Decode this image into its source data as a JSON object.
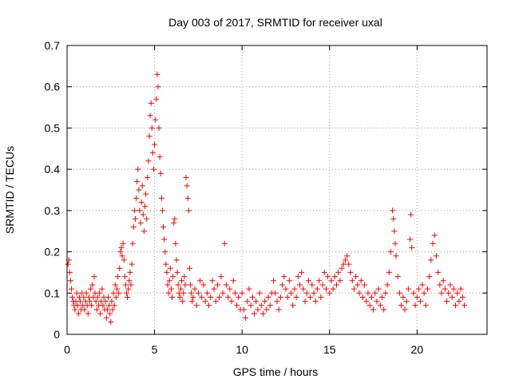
{
  "chart_data": {
    "type": "scatter",
    "title": "Day 003 of 2017, SRMTID for receiver uxal",
    "xlabel": "GPS time / hours",
    "ylabel": "SRMTID / TECUs",
    "xlim": [
      0,
      24
    ],
    "ylim": [
      0,
      0.7
    ],
    "xticks": [
      "0",
      "5",
      "10",
      "15",
      "20"
    ],
    "yticks": [
      "0",
      "0.1",
      "0.2",
      "0.3",
      "0.4",
      "0.5",
      "0.6",
      "0.7"
    ],
    "grid": true,
    "marker": "+",
    "marker_color": "#ff0000",
    "series": [
      {
        "name": "SRMTID",
        "points": [
          [
            0.05,
            0.17
          ],
          [
            0.1,
            0.18
          ],
          [
            0.15,
            0.15
          ],
          [
            0.2,
            0.13
          ],
          [
            0.25,
            0.11
          ],
          [
            0.3,
            0.09
          ],
          [
            0.35,
            0.08
          ],
          [
            0.4,
            0.07
          ],
          [
            0.45,
            0.06
          ],
          [
            0.5,
            0.08
          ],
          [
            0.55,
            0.1
          ],
          [
            0.6,
            0.07
          ],
          [
            0.65,
            0.05
          ],
          [
            0.7,
            0.09
          ],
          [
            0.75,
            0.08
          ],
          [
            0.8,
            0.06
          ],
          [
            0.85,
            0.1
          ],
          [
            0.9,
            0.07
          ],
          [
            0.95,
            0.09
          ],
          [
            1.0,
            0.06
          ],
          [
            1.05,
            0.08
          ],
          [
            1.1,
            0.1
          ],
          [
            1.15,
            0.07
          ],
          [
            1.2,
            0.05
          ],
          [
            1.25,
            0.09
          ],
          [
            1.3,
            0.08
          ],
          [
            1.35,
            0.11
          ],
          [
            1.4,
            0.07
          ],
          [
            1.45,
            0.12
          ],
          [
            1.5,
            0.09
          ],
          [
            1.55,
            0.14
          ],
          [
            1.6,
            0.1
          ],
          [
            1.65,
            0.08
          ],
          [
            1.7,
            0.06
          ],
          [
            1.75,
            0.09
          ],
          [
            1.8,
            0.07
          ],
          [
            1.85,
            0.1
          ],
          [
            1.9,
            0.05
          ],
          [
            1.95,
            0.08
          ],
          [
            2.0,
            0.11
          ],
          [
            2.05,
            0.07
          ],
          [
            2.1,
            0.09
          ],
          [
            2.15,
            0.06
          ],
          [
            2.2,
            0.08
          ],
          [
            2.25,
            0.04
          ],
          [
            2.3,
            0.06
          ],
          [
            2.35,
            0.09
          ],
          [
            2.4,
            0.07
          ],
          [
            2.45,
            0.05
          ],
          [
            2.5,
            0.03
          ],
          [
            2.55,
            0.08
          ],
          [
            2.6,
            0.06
          ],
          [
            2.65,
            0.1
          ],
          [
            2.7,
            0.07
          ],
          [
            2.75,
            0.12
          ],
          [
            2.8,
            0.09
          ],
          [
            2.85,
            0.11
          ],
          [
            2.9,
            0.14
          ],
          [
            2.95,
            0.1
          ],
          [
            3.0,
            0.16
          ],
          [
            3.05,
            0.2
          ],
          [
            3.1,
            0.21
          ],
          [
            3.15,
            0.19
          ],
          [
            3.2,
            0.22
          ],
          [
            3.25,
            0.18
          ],
          [
            3.3,
            0.14
          ],
          [
            3.35,
            0.12
          ],
          [
            3.4,
            0.1
          ],
          [
            3.45,
            0.09
          ],
          [
            3.5,
            0.11
          ],
          [
            3.55,
            0.13
          ],
          [
            3.6,
            0.15
          ],
          [
            3.65,
            0.12
          ],
          [
            3.7,
            0.17
          ],
          [
            3.75,
            0.22
          ],
          [
            3.8,
            0.26
          ],
          [
            3.85,
            0.3
          ],
          [
            3.9,
            0.28
          ],
          [
            3.95,
            0.33
          ],
          [
            4.0,
            0.37
          ],
          [
            4.05,
            0.4
          ],
          [
            4.1,
            0.35
          ],
          [
            4.15,
            0.3
          ],
          [
            4.2,
            0.27
          ],
          [
            4.25,
            0.32
          ],
          [
            4.3,
            0.36
          ],
          [
            4.35,
            0.29
          ],
          [
            4.4,
            0.25
          ],
          [
            4.45,
            0.31
          ],
          [
            4.5,
            0.34
          ],
          [
            4.55,
            0.28
          ],
          [
            4.6,
            0.38
          ],
          [
            4.65,
            0.42
          ],
          [
            4.7,
            0.48
          ],
          [
            4.75,
            0.53
          ],
          [
            4.8,
            0.56
          ],
          [
            4.85,
            0.5
          ],
          [
            4.9,
            0.44
          ],
          [
            4.95,
            0.4
          ],
          [
            5.0,
            0.46
          ],
          [
            5.05,
            0.52
          ],
          [
            5.1,
            0.57
          ],
          [
            5.15,
            0.63
          ],
          [
            5.2,
            0.6
          ],
          [
            5.25,
            0.5
          ],
          [
            5.3,
            0.43
          ],
          [
            5.35,
            0.39
          ],
          [
            5.4,
            0.33
          ],
          [
            5.45,
            0.3
          ],
          [
            5.5,
            0.26
          ],
          [
            5.55,
            0.23
          ],
          [
            5.6,
            0.2
          ],
          [
            5.65,
            0.17
          ],
          [
            5.7,
            0.15
          ],
          [
            5.75,
            0.12
          ],
          [
            5.8,
            0.1
          ],
          [
            5.85,
            0.13
          ],
          [
            5.9,
            0.16
          ],
          [
            5.95,
            0.11
          ],
          [
            6.0,
            0.09
          ],
          [
            6.05,
            0.14
          ],
          [
            6.1,
            0.27
          ],
          [
            6.15,
            0.28
          ],
          [
            6.2,
            0.22
          ],
          [
            6.25,
            0.18
          ],
          [
            6.3,
            0.15
          ],
          [
            6.35,
            0.12
          ],
          [
            6.4,
            0.1
          ],
          [
            6.45,
            0.09
          ],
          [
            6.5,
            0.11
          ],
          [
            6.55,
            0.13
          ],
          [
            6.6,
            0.08
          ],
          [
            6.65,
            0.1
          ],
          [
            6.7,
            0.14
          ],
          [
            6.75,
            0.12
          ],
          [
            6.8,
            0.38
          ],
          [
            6.85,
            0.36
          ],
          [
            6.9,
            0.33
          ],
          [
            6.95,
            0.3
          ],
          [
            7.0,
            0.16
          ],
          [
            7.05,
            0.12
          ],
          [
            7.1,
            0.1
          ],
          [
            7.15,
            0.08
          ],
          [
            7.2,
            0.09
          ],
          [
            7.3,
            0.11
          ],
          [
            7.4,
            0.07
          ],
          [
            7.5,
            0.1
          ],
          [
            7.6,
            0.13
          ],
          [
            7.7,
            0.09
          ],
          [
            7.8,
            0.12
          ],
          [
            7.9,
            0.08
          ],
          [
            8.0,
            0.1
          ],
          [
            8.1,
            0.07
          ],
          [
            8.2,
            0.09
          ],
          [
            8.3,
            0.13
          ],
          [
            8.4,
            0.11
          ],
          [
            8.5,
            0.08
          ],
          [
            8.6,
            0.12
          ],
          [
            8.7,
            0.09
          ],
          [
            8.8,
            0.14
          ],
          [
            8.9,
            0.1
          ],
          [
            9.0,
            0.22
          ],
          [
            9.1,
            0.12
          ],
          [
            9.2,
            0.09
          ],
          [
            9.3,
            0.11
          ],
          [
            9.4,
            0.08
          ],
          [
            9.5,
            0.13
          ],
          [
            9.6,
            0.1
          ],
          [
            9.7,
            0.07
          ],
          [
            9.8,
            0.09
          ],
          [
            9.9,
            0.06
          ],
          [
            10.0,
            0.1
          ],
          [
            10.1,
            0.06
          ],
          [
            10.2,
            0.04
          ],
          [
            10.3,
            0.08
          ],
          [
            10.4,
            0.11
          ],
          [
            10.5,
            0.07
          ],
          [
            10.6,
            0.09
          ],
          [
            10.7,
            0.05
          ],
          [
            10.8,
            0.08
          ],
          [
            10.9,
            0.06
          ],
          [
            11.0,
            0.1
          ],
          [
            11.1,
            0.07
          ],
          [
            11.2,
            0.05
          ],
          [
            11.3,
            0.08
          ],
          [
            11.4,
            0.06
          ],
          [
            11.5,
            0.09
          ],
          [
            11.6,
            0.07
          ],
          [
            11.7,
            0.1
          ],
          [
            11.8,
            0.13
          ],
          [
            11.9,
            0.1
          ],
          [
            12.0,
            0.08
          ],
          [
            12.1,
            0.06
          ],
          [
            12.2,
            0.09
          ],
          [
            12.3,
            0.12
          ],
          [
            12.4,
            0.14
          ],
          [
            12.5,
            0.11
          ],
          [
            12.6,
            0.09
          ],
          [
            12.7,
            0.13
          ],
          [
            12.8,
            0.1
          ],
          [
            12.9,
            0.07
          ],
          [
            13.0,
            0.11
          ],
          [
            13.1,
            0.09
          ],
          [
            13.2,
            0.14
          ],
          [
            13.3,
            0.12
          ],
          [
            13.4,
            0.15
          ],
          [
            13.5,
            0.11
          ],
          [
            13.6,
            0.08
          ],
          [
            13.7,
            0.1
          ],
          [
            13.8,
            0.13
          ],
          [
            13.9,
            0.09
          ],
          [
            14.0,
            0.12
          ],
          [
            14.1,
            0.1
          ],
          [
            14.2,
            0.08
          ],
          [
            14.3,
            0.11
          ],
          [
            14.4,
            0.13
          ],
          [
            14.5,
            0.09
          ],
          [
            14.6,
            0.12
          ],
          [
            14.7,
            0.15
          ],
          [
            14.8,
            0.11
          ],
          [
            14.9,
            0.14
          ],
          [
            15.0,
            0.1
          ],
          [
            15.1,
            0.13
          ],
          [
            15.2,
            0.11
          ],
          [
            15.3,
            0.14
          ],
          [
            15.4,
            0.12
          ],
          [
            15.5,
            0.15
          ],
          [
            15.6,
            0.13
          ],
          [
            15.7,
            0.16
          ],
          [
            15.8,
            0.17
          ],
          [
            15.9,
            0.18
          ],
          [
            16.0,
            0.19
          ],
          [
            16.1,
            0.17
          ],
          [
            16.2,
            0.15
          ],
          [
            16.3,
            0.13
          ],
          [
            16.4,
            0.11
          ],
          [
            16.5,
            0.14
          ],
          [
            16.6,
            0.12
          ],
          [
            16.7,
            0.1
          ],
          [
            16.8,
            0.13
          ],
          [
            16.9,
            0.09
          ],
          [
            17.0,
            0.12
          ],
          [
            17.1,
            0.08
          ],
          [
            17.2,
            0.1
          ],
          [
            17.3,
            0.07
          ],
          [
            17.4,
            0.09
          ],
          [
            17.5,
            0.06
          ],
          [
            17.6,
            0.1
          ],
          [
            17.7,
            0.08
          ],
          [
            17.8,
            0.11
          ],
          [
            17.9,
            0.07
          ],
          [
            18.0,
            0.09
          ],
          [
            18.1,
            0.06
          ],
          [
            18.2,
            0.1
          ],
          [
            18.3,
            0.12
          ],
          [
            18.4,
            0.15
          ],
          [
            18.5,
            0.2
          ],
          [
            18.6,
            0.3
          ],
          [
            18.65,
            0.28
          ],
          [
            18.7,
            0.25
          ],
          [
            18.75,
            0.22
          ],
          [
            18.8,
            0.19
          ],
          [
            18.9,
            0.14
          ],
          [
            19.0,
            0.1
          ],
          [
            19.1,
            0.07
          ],
          [
            19.2,
            0.09
          ],
          [
            19.3,
            0.06
          ],
          [
            19.4,
            0.08
          ],
          [
            19.5,
            0.11
          ],
          [
            19.6,
            0.23
          ],
          [
            19.65,
            0.29
          ],
          [
            19.7,
            0.21
          ],
          [
            19.8,
            0.1
          ],
          [
            19.9,
            0.07
          ],
          [
            20.0,
            0.09
          ],
          [
            20.1,
            0.11
          ],
          [
            20.2,
            0.08
          ],
          [
            20.3,
            0.12
          ],
          [
            20.4,
            0.1
          ],
          [
            20.5,
            0.07
          ],
          [
            20.6,
            0.11
          ],
          [
            20.7,
            0.14
          ],
          [
            20.8,
            0.18
          ],
          [
            20.9,
            0.22
          ],
          [
            21.0,
            0.24
          ],
          [
            21.1,
            0.19
          ],
          [
            21.2,
            0.15
          ],
          [
            21.3,
            0.12
          ],
          [
            21.4,
            0.1
          ],
          [
            21.5,
            0.13
          ],
          [
            21.6,
            0.11
          ],
          [
            21.7,
            0.08
          ],
          [
            21.8,
            0.1
          ],
          [
            21.9,
            0.12
          ],
          [
            22.0,
            0.09
          ],
          [
            22.1,
            0.11
          ],
          [
            22.2,
            0.07
          ],
          [
            22.3,
            0.1
          ],
          [
            22.4,
            0.08
          ],
          [
            22.5,
            0.11
          ],
          [
            22.6,
            0.09
          ],
          [
            22.7,
            0.07
          ]
        ]
      }
    ]
  }
}
